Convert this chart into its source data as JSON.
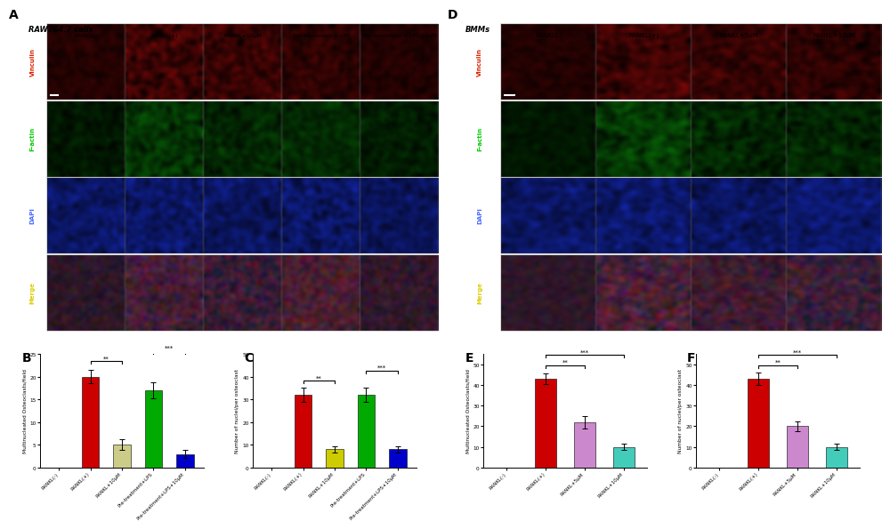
{
  "panel_A_label": "A",
  "panel_D_label": "D",
  "panel_B_label": "B",
  "panel_C_label": "C",
  "panel_E_label": "E",
  "panel_F_label": "F",
  "raw_cell_title": "RAW264.7 cells",
  "bmm_title": "BMMs",
  "raw_col_labels": [
    "RANKL(-)",
    "RANKL(+)",
    "RANKL+10μM",
    "Pre-treatment + LPS",
    "Pre-treatment + LPS 10μM"
  ],
  "bmm_col_labels": [
    "RANKL(-)",
    "RANKL(+)",
    "RANKL+5μM",
    "RANKL+10μM"
  ],
  "row_labels": [
    "Vinculin",
    "F-actin",
    "DAPI",
    "Merge"
  ],
  "row_label_colors": {
    "Vinculin": "#dd2200",
    "F-actin": "#00cc00",
    "DAPI": "#4466ff",
    "Merge": "#ddcc00"
  },
  "B_values": [
    0,
    20,
    5,
    17,
    3
  ],
  "B_errors": [
    0,
    1.5,
    1.2,
    1.8,
    0.8
  ],
  "B_colors": [
    "#cc0000",
    "#cc0000",
    "#cccc88",
    "#00aa00",
    "#0000cc"
  ],
  "B_categories": [
    "RANKL(-)",
    "RANKL(+)",
    "RANKL+10μM",
    "Pre-treatment+LPS",
    "Pre-treatment+LPS+10μM"
  ],
  "B_ylabel": "Multinucleated Osteoclasts/field",
  "B_ylim": [
    0,
    25
  ],
  "B_yticks": [
    0,
    5,
    10,
    15,
    20,
    25
  ],
  "C_values": [
    0,
    32,
    8,
    32,
    8
  ],
  "C_errors": [
    0,
    3.0,
    1.5,
    3.0,
    1.5
  ],
  "C_colors": [
    "#cc0000",
    "#cc0000",
    "#cccc00",
    "#00aa00",
    "#0000cc"
  ],
  "C_categories": [
    "RANKL(-)",
    "RANKL(+)",
    "RANKL+10μM",
    "Pre-treatment+LPS",
    "Pre-treatment+LPS+10μM"
  ],
  "C_ylabel": "Number of nuclei/per osteoclast",
  "C_ylim": [
    0,
    50
  ],
  "C_yticks": [
    0,
    10,
    20,
    30,
    40,
    50
  ],
  "E_values": [
    0,
    43,
    22,
    10
  ],
  "E_errors": [
    0,
    2.5,
    3.0,
    1.5
  ],
  "E_colors": [
    "#cc0000",
    "#cc0000",
    "#cc88cc",
    "#44ccbb"
  ],
  "E_categories": [
    "RANKL(-)",
    "RANKL(+)",
    "RANKL+5μM",
    "RANKL+10μM"
  ],
  "E_ylabel": "Multinucleated Osteoclasts/field",
  "E_ylim": [
    0,
    55
  ],
  "E_yticks": [
    0,
    10,
    20,
    30,
    40,
    50
  ],
  "F_values": [
    0,
    43,
    20,
    10
  ],
  "F_errors": [
    0,
    3.0,
    2.5,
    1.5
  ],
  "F_colors": [
    "#cc0000",
    "#cc0000",
    "#cc88cc",
    "#44ccbb"
  ],
  "F_categories": [
    "RANKL(-)",
    "RANKL(+)",
    "RANKL+5μM",
    "RANKL+10μM"
  ],
  "F_ylabel": "Number of nuclei/per osteoclast",
  "F_ylim": [
    0,
    55
  ],
  "F_yticks": [
    0,
    10,
    20,
    30,
    40,
    50
  ],
  "background_color": "#ffffff",
  "bar_width": 0.55
}
